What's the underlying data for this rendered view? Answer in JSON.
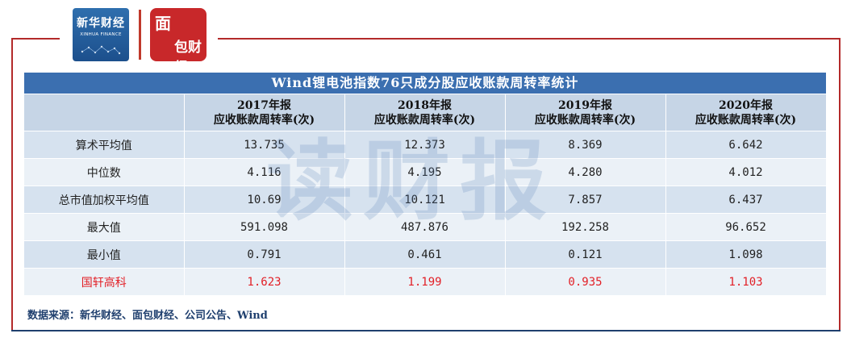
{
  "logos": {
    "xinhua_cn": "新华财经",
    "xinhua_en": "XINHUA FINANCE",
    "mianbao_mark": "面",
    "mianbao_text": "包财经"
  },
  "table": {
    "title": "Wind锂电池指数76只成分股应收账款周转率统计",
    "columns": [
      {
        "year": "2017年报",
        "metric": "应收账款周转率(次)"
      },
      {
        "year": "2018年报",
        "metric": "应收账款周转率(次)"
      },
      {
        "year": "2019年报",
        "metric": "应收账款周转率(次)"
      },
      {
        "year": "2020年报",
        "metric": "应收账款周转率(次)"
      }
    ],
    "rows": [
      {
        "label": "算术平均值",
        "values": [
          "13.735",
          "12.373",
          "8.369",
          "6.642"
        ]
      },
      {
        "label": "中位数",
        "values": [
          "4.116",
          "4.195",
          "4.280",
          "4.012"
        ]
      },
      {
        "label": "总市值加权平均值",
        "values": [
          "10.69",
          "10.121",
          "7.857",
          "6.437"
        ]
      },
      {
        "label": "最大值",
        "values": [
          "591.098",
          "487.876",
          "192.258",
          "96.652"
        ]
      },
      {
        "label": "最小值",
        "values": [
          "0.791",
          "0.461",
          "0.121",
          "1.098"
        ]
      },
      {
        "label": "国轩高科",
        "values": [
          "1.623",
          "1.199",
          "0.935",
          "1.103"
        ]
      }
    ]
  },
  "watermark": "读财报",
  "source": "数据来源：新华财经、面包财经、公司公告、Wind",
  "colors": {
    "title_bg": "#3b6fb0",
    "header_bg": "#c6d5e6",
    "highlight_text": "#e21f26",
    "frame_red": "#b32a2a"
  }
}
